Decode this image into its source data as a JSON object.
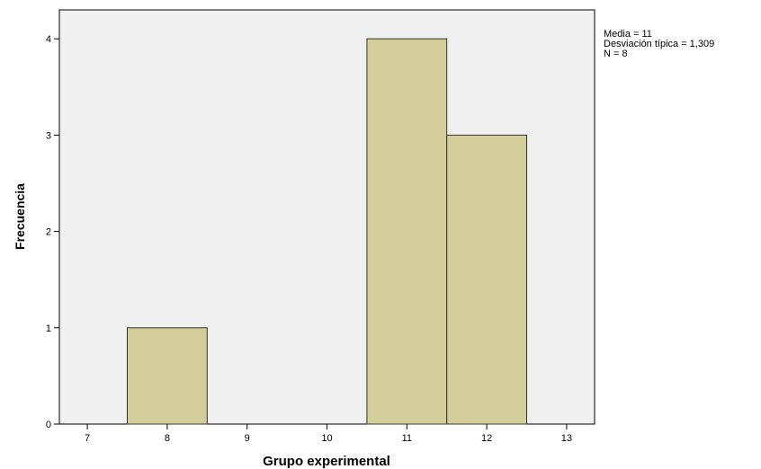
{
  "chart_data": {
    "type": "histogram",
    "xlabel": "Grupo experimental",
    "ylabel": "Frecuencia",
    "xlim": [
      6.65,
      13.35
    ],
    "ylim": [
      0,
      4.3
    ],
    "x_ticks": [
      7,
      8,
      9,
      10,
      11,
      12,
      13
    ],
    "y_ticks": [
      0,
      1,
      2,
      3,
      4
    ],
    "bin_width": 1,
    "bins": [
      {
        "center": 8,
        "count": 1
      },
      {
        "center": 11,
        "count": 4
      },
      {
        "center": 12,
        "count": 3
      }
    ],
    "colors": {
      "bar_fill": "#d3ce99",
      "bar_stroke": "#333333",
      "plot_background": "#f0f0f0"
    },
    "stats": {
      "mean": "Media = 11",
      "std": "Desviación típica = 1,309",
      "n": "N = 8"
    }
  }
}
